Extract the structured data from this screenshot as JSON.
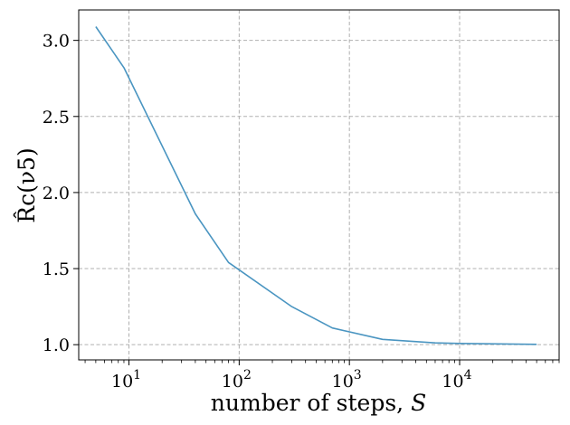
{
  "chart_data": {
    "type": "line",
    "xscale": "log",
    "xlim": [
      3.5,
      80000
    ],
    "ylim": [
      0.9,
      3.2
    ],
    "grid": true,
    "xlabel": {
      "text": "number of steps, ",
      "var": "S"
    },
    "ylabel": "R̂c(ν5)",
    "x_ticks": [
      {
        "value": 10,
        "base": "10",
        "exp": "1"
      },
      {
        "value": 100,
        "base": "10",
        "exp": "2"
      },
      {
        "value": 1000,
        "base": "10",
        "exp": "3"
      },
      {
        "value": 10000,
        "base": "10",
        "exp": "4"
      }
    ],
    "y_ticks": [
      {
        "value": 1.0,
        "label": "1.0"
      },
      {
        "value": 1.5,
        "label": "1.5"
      },
      {
        "value": 2.0,
        "label": "2.0"
      },
      {
        "value": 2.5,
        "label": "2.5"
      },
      {
        "value": 3.0,
        "label": "3.0"
      }
    ],
    "series": [
      {
        "color": "#4a95c1",
        "x": [
          5,
          9,
          40,
          80,
          300,
          700,
          2000,
          6000,
          10000,
          50000
        ],
        "y": [
          3.09,
          2.82,
          1.86,
          1.54,
          1.25,
          1.11,
          1.035,
          1.012,
          1.008,
          1.002
        ]
      }
    ]
  }
}
